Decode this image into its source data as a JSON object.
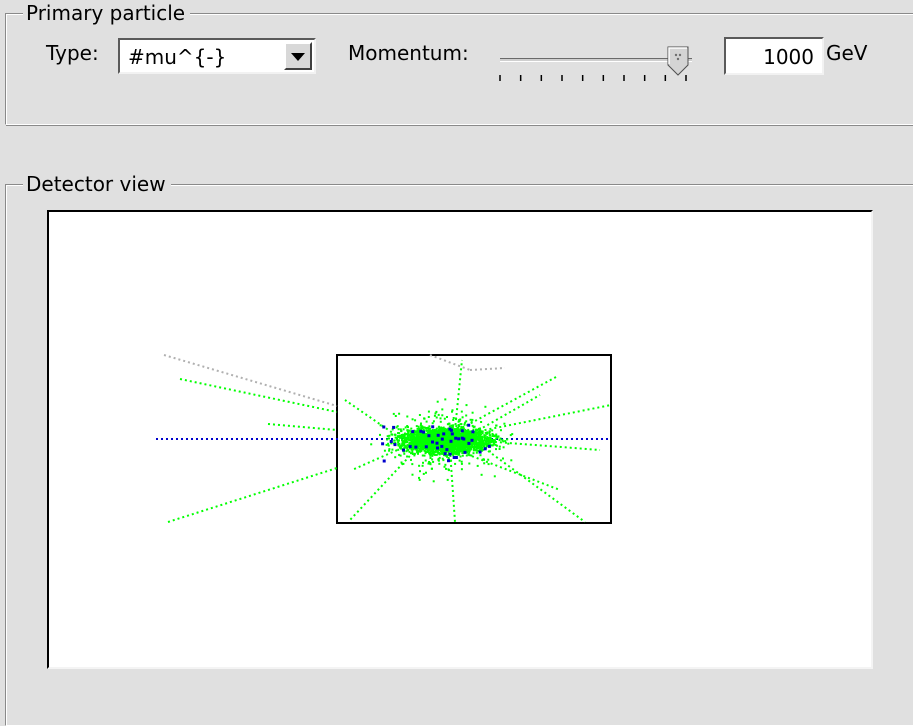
{
  "primary_particle": {
    "group_title": "Primary particle",
    "type_label": "Type:",
    "type_value": "#mu^{-}",
    "momentum_label": "Momentum:",
    "momentum_slider_fraction": 0.98,
    "momentum_value": "1000",
    "momentum_unit": "GeV"
  },
  "detector_view": {
    "group_title": "Detector view"
  },
  "colors": {
    "window_bg": "#e0e0e0",
    "canvas_bg": "#ffffff",
    "shower_green": "#00ff00",
    "primary_track_blue": "#0000cc",
    "secondary_track_grey": "#b0b0b0",
    "detector_outline": "#000000"
  }
}
